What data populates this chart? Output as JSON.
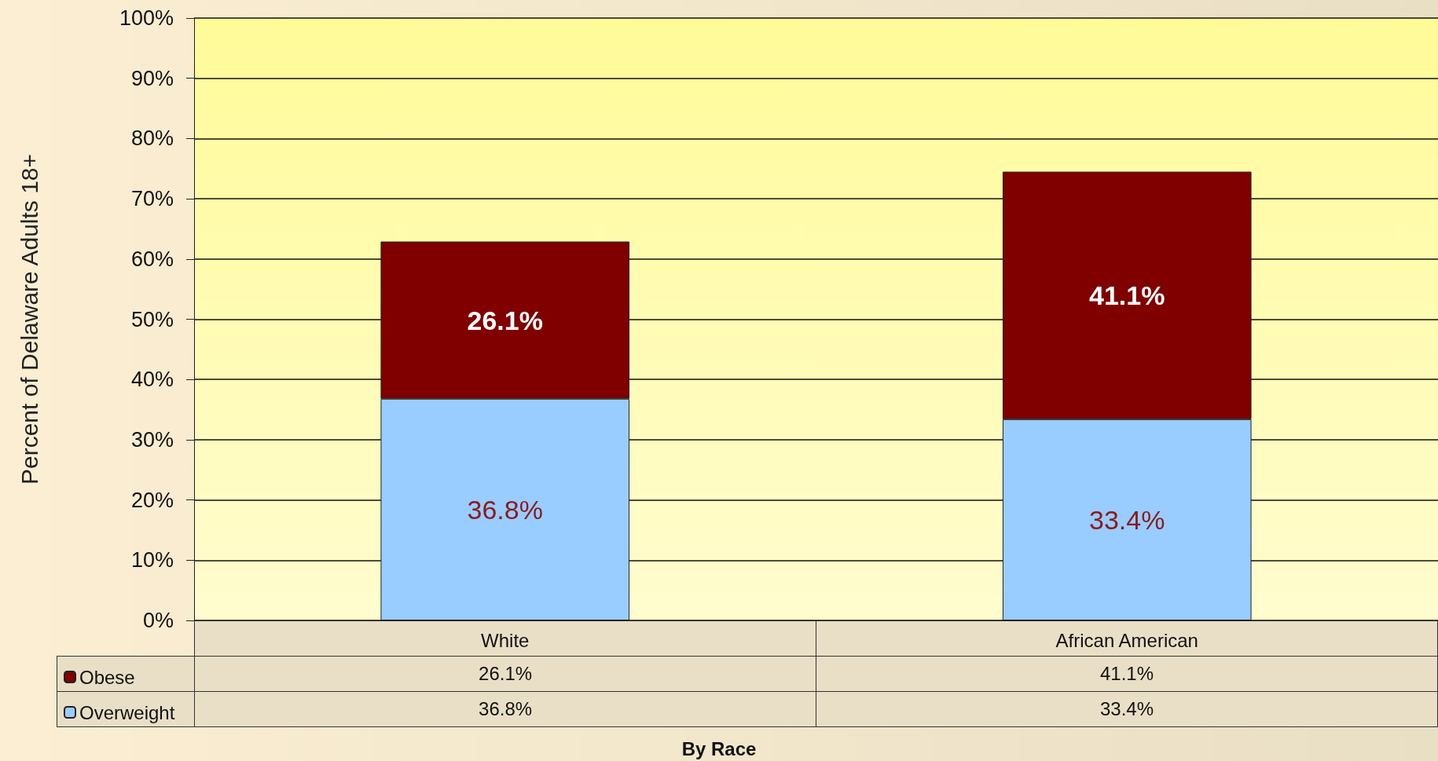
{
  "chart_data": {
    "type": "bar",
    "stacked": true,
    "categories": [
      "White",
      "African American"
    ],
    "series": [
      {
        "name": "Overweight",
        "color": "#99ccff",
        "values": [
          36.8,
          33.4
        ]
      },
      {
        "name": "Obese",
        "color": "#800000",
        "values": [
          26.1,
          41.1
        ]
      }
    ],
    "annotations": [
      "By Race"
    ],
    "ylabel": "Percent of Delaware Adults 18+",
    "ylim": [
      0,
      100
    ],
    "yticks": [
      {
        "value": 0,
        "label": "0%"
      },
      {
        "value": 10,
        "label": "10%"
      },
      {
        "value": 20,
        "label": "20%"
      },
      {
        "value": 30,
        "label": "30%"
      },
      {
        "value": 40,
        "label": "40%"
      },
      {
        "value": 50,
        "label": "50%"
      },
      {
        "value": 60,
        "label": "60%"
      },
      {
        "value": 70,
        "label": "70%"
      },
      {
        "value": 80,
        "label": "80%"
      },
      {
        "value": 90,
        "label": "90%"
      },
      {
        "value": 100,
        "label": "100%"
      }
    ],
    "value_labels": [
      [
        "36.8%",
        "33.4%"
      ],
      [
        "26.1%",
        "41.1%"
      ]
    ],
    "grid": "y",
    "legend": "bottom left"
  }
}
